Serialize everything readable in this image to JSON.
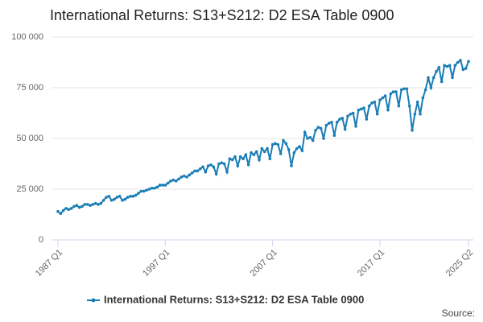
{
  "chart_data": {
    "type": "line",
    "title": "International Returns: S13+S212: D2 ESA Table 0900",
    "source_label": "Source:",
    "categories": [
      "1987 Q1",
      null,
      null,
      null,
      null,
      null,
      null,
      null,
      null,
      null,
      null,
      null,
      null,
      null,
      null,
      null,
      null,
      null,
      null,
      null,
      null,
      null,
      null,
      null,
      null,
      null,
      null,
      null,
      null,
      null,
      null,
      null,
      null,
      null,
      null,
      null,
      null,
      null,
      null,
      null,
      "1997 Q1",
      null,
      null,
      null,
      null,
      null,
      null,
      null,
      null,
      null,
      null,
      null,
      null,
      null,
      null,
      null,
      null,
      null,
      null,
      null,
      null,
      null,
      null,
      null,
      null,
      null,
      null,
      null,
      null,
      null,
      null,
      null,
      null,
      null,
      null,
      null,
      null,
      null,
      null,
      null,
      "2007 Q1",
      null,
      null,
      null,
      null,
      null,
      null,
      null,
      null,
      null,
      null,
      null,
      null,
      null,
      null,
      null,
      null,
      null,
      null,
      null,
      null,
      null,
      null,
      null,
      null,
      null,
      null,
      null,
      null,
      null,
      null,
      null,
      null,
      null,
      null,
      null,
      null,
      null,
      null,
      null,
      "2017 Q1",
      null,
      null,
      null,
      null,
      null,
      null,
      null,
      null,
      null,
      null,
      null,
      null,
      null,
      null,
      null,
      null,
      null,
      null,
      null,
      null,
      null,
      null,
      null,
      null,
      null,
      null,
      null,
      null,
      null,
      null,
      null,
      null,
      "2025 Q2"
    ],
    "series": [
      {
        "name": "International Returns: S13+S212: D2 ESA Table 0900",
        "color": "#1a7db6",
        "values": [
          14000,
          13000,
          14500,
          15500,
          15000,
          15500,
          16500,
          17000,
          16000,
          16500,
          17500,
          17500,
          17000,
          17500,
          18000,
          17500,
          18000,
          19500,
          21000,
          21500,
          19500,
          20000,
          21000,
          21500,
          19500,
          20000,
          21000,
          21500,
          21500,
          22000,
          23000,
          24000,
          24000,
          24500,
          25000,
          25500,
          25500,
          26000,
          27000,
          27000,
          27000,
          28000,
          29000,
          29500,
          29000,
          30000,
          31000,
          31500,
          31000,
          32000,
          33000,
          34000,
          34000,
          35000,
          36000,
          33500,
          36500,
          37000,
          36000,
          32500,
          37500,
          38000,
          37500,
          33500,
          40000,
          39500,
          41000,
          36500,
          41000,
          40000,
          42000,
          37000,
          43000,
          42000,
          43500,
          39500,
          45000,
          43500,
          45000,
          40000,
          47000,
          47500,
          47000,
          42500,
          49000,
          47500,
          44500,
          36500,
          43000,
          45000,
          46000,
          44000,
          53000,
          50000,
          50500,
          49000,
          54000,
          55500,
          55000,
          50000,
          56500,
          57500,
          58000,
          51500,
          58000,
          59500,
          60000,
          54500,
          61000,
          62000,
          62500,
          56000,
          64000,
          64500,
          65000,
          59500,
          66000,
          67500,
          68000,
          62000,
          69000,
          70000,
          71000,
          64000,
          72000,
          73000,
          73000,
          66000,
          74000,
          74500,
          74500,
          66000,
          54000,
          62000,
          68000,
          62000,
          70000,
          74000,
          80000,
          75000,
          80000,
          83000,
          85000,
          78000,
          86000,
          85500,
          86000,
          80000,
          86000,
          87500,
          88500,
          84000,
          84500,
          88000
        ]
      }
    ],
    "ylim": [
      0,
      100000
    ],
    "yticks": [
      0,
      {
        "value": 25000,
        "label": "25 000"
      },
      {
        "value": 50000,
        "label": "50 000"
      },
      {
        "value": 75000,
        "label": "75 000"
      },
      {
        "value": 100000,
        "label": "100 000"
      }
    ],
    "grid": true
  }
}
